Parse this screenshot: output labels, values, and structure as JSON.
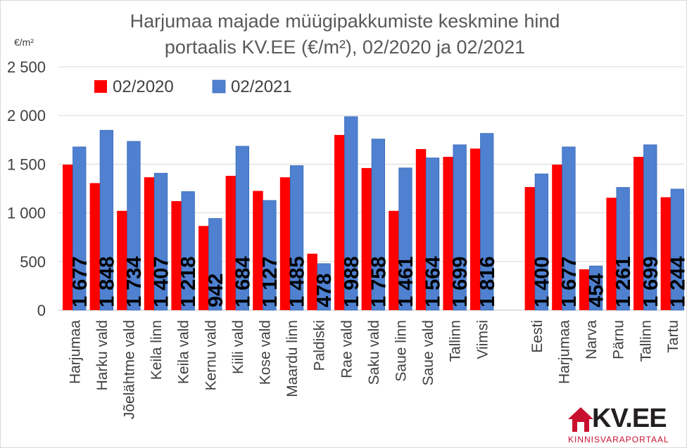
{
  "title_line1": "Harjumaa majade müügipakkumiste keskmine hind",
  "title_line2": "portaalis KV.EE (€/m²), 02/2020 ja 02/2021",
  "unit_label": "€/m²",
  "logo": {
    "text": "KV.EE",
    "sub": "KINNISVARAPORTAAL",
    "icon": "house-icon"
  },
  "chart_data": {
    "type": "bar",
    "title": "Harjumaa majade müügipakkumiste keskmine hind portaalis KV.EE (€/m²), 02/2020 ja 02/2021",
    "ylabel": "€/m²",
    "ylim": [
      0,
      2500
    ],
    "yticks": [
      0,
      500,
      1000,
      1500,
      2000,
      2500
    ],
    "ytick_labels": [
      "0",
      "500",
      "1 000",
      "1 500",
      "2 000",
      "2 500"
    ],
    "grid": true,
    "legend": "top-left",
    "group_gap_after_index": 15,
    "categories": [
      "Harjumaa",
      "Harku vald",
      "Jõelähtme vald",
      "Keila linn",
      "Keila vald",
      "Kernu vald",
      "Kiili vald",
      "Kose vald",
      "Maardu linn",
      "Paldiski",
      "Rae vald",
      "Saku vald",
      "Saue linn",
      "Saue vald",
      "Tallinn",
      "Viimsi",
      "Eesti",
      "Harjumaa",
      "Narva",
      "Pärnu",
      "Tallinn",
      "Tartu"
    ],
    "series": [
      {
        "name": "02/2020",
        "color": "#ff0000",
        "values": [
          1495,
          1305,
          1020,
          1365,
          1120,
          865,
          1380,
          1225,
          1365,
          580,
          1800,
          1460,
          1020,
          1655,
          1575,
          1660,
          1265,
          1495,
          420,
          1155,
          1575,
          1160
        ]
      },
      {
        "name": "02/2021",
        "color": "#4f81d0",
        "values": [
          1677,
          1848,
          1734,
          1407,
          1218,
          942,
          1684,
          1127,
          1485,
          478,
          1988,
          1758,
          1461,
          1564,
          1699,
          1816,
          1400,
          1677,
          454,
          1261,
          1699,
          1244
        ],
        "data_labels": [
          "1 677",
          "1 848",
          "1 734",
          "1 407",
          "1 218",
          "942",
          "1 684",
          "1 127",
          "1 485",
          "478",
          "1 988",
          "1 758",
          "1 461",
          "1 564",
          "1 699",
          "1 816",
          "1 400",
          "1 677",
          "454",
          "1 261",
          "1 699",
          "1 244"
        ]
      }
    ]
  }
}
